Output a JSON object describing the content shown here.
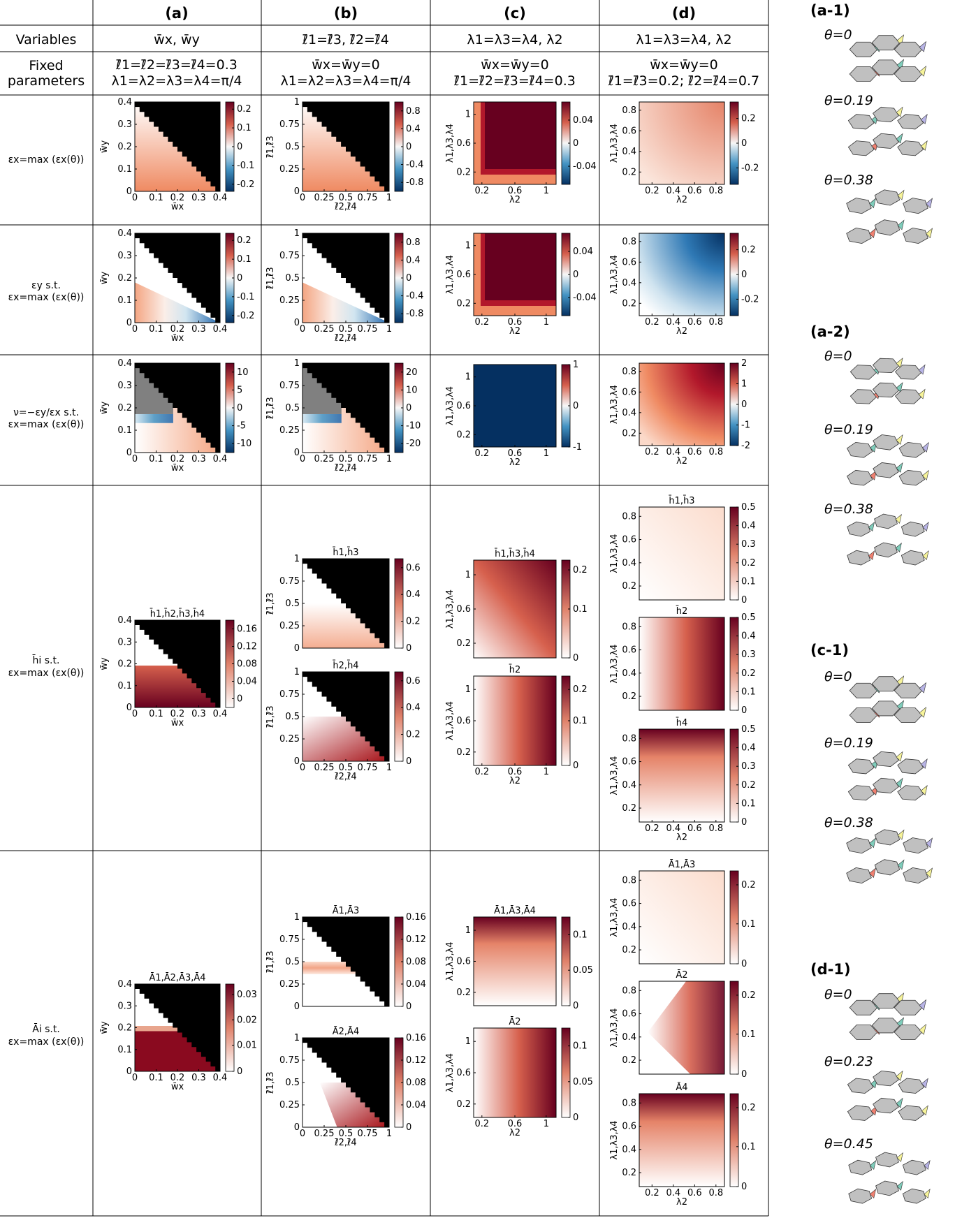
{
  "columns": {
    "a": "(a)",
    "b": "(b)",
    "c": "(c)",
    "d": "(d)"
  },
  "row_labels": {
    "variables": "Variables",
    "fixed_1": "Fixed",
    "fixed_2": "parameters",
    "r1": "εx=max (εx(θ))",
    "r2a": "εy s.t.",
    "r2b": "εx=max (εx(θ))",
    "r3a": "ν=−εy/εx s.t.",
    "r3b": "εx=max (εx(θ))",
    "r4a": "h̄i s.t.",
    "r4b": "εx=max (εx(θ))",
    "r5a": "Āi s.t.",
    "r5b": "εx=max (εx(θ))"
  },
  "variables": {
    "a": "w̄x,  w̄y",
    "b": "ℓ̄1=ℓ̄3,  ℓ̄2=ℓ̄4",
    "c": "λ1=λ3=λ4,  λ2",
    "d": "λ1=λ3=λ4,  λ2"
  },
  "fixed": {
    "a1": "ℓ̄1=ℓ̄2=ℓ̄3=ℓ̄4=0.3",
    "a2": "λ1=λ2=λ3=λ4=π/4",
    "b1": "w̄x=w̄y=0",
    "b2": "λ1=λ2=λ3=λ4=π/4",
    "c1": "w̄x=w̄y=0",
    "c2": "ℓ̄1=ℓ̄2=ℓ̄3=ℓ̄4=0.3",
    "d1": "w̄x=w̄y=0",
    "d2": "ℓ̄1=ℓ̄3=0.2;  ℓ̄2=ℓ̄4=0.7"
  },
  "axes": {
    "wx": "w̄x",
    "wy": "w̄y",
    "l24": "ℓ̄2,ℓ̄4",
    "l13": "ℓ̄1,ℓ̄3",
    "lam2": "λ2",
    "lam134": "λ1,λ3,λ4"
  },
  "subtitles": {
    "h_all": "h̄1,h̄2,h̄3,h̄4",
    "h13": "h̄1,h̄3",
    "h24": "h̄2,h̄4",
    "h134": "h̄1,h̄3,h̄4",
    "h2": "h̄2",
    "h4": "h̄4",
    "A_all": "Ā1,Ā2,Ā3,Ā4",
    "A13": "Ā1,Ā3",
    "A24": "Ā2,Ā4",
    "A134": "Ā1,Ā3,Ā4",
    "A2": "Ā2",
    "A4": "Ā4"
  },
  "ticks": {
    "w": [
      "0",
      "0.1",
      "0.2",
      "0.3",
      "0.4"
    ],
    "l": [
      "0",
      "0.25",
      "0.5",
      "0.75",
      "1"
    ],
    "lam_c": [
      "0.2",
      "0.6",
      "1"
    ],
    "lam_d": [
      "0.2",
      "0.4",
      "0.6",
      "0.8"
    ]
  },
  "colorbars": {
    "a_r1": [
      "0.2",
      "0.1",
      "0",
      "-0.1",
      "-0.2"
    ],
    "b_r1": [
      "0.8",
      "0.4",
      "0",
      "-0.4",
      "-0.8"
    ],
    "c_r1": [
      "0.04",
      "0",
      "-0.04"
    ],
    "d_r1": [
      "0.2",
      "0",
      "-0.2"
    ],
    "a_r3": [
      "10",
      "5",
      "0",
      "-5",
      "-10"
    ],
    "b_r3": [
      "20",
      "10",
      "0",
      "-10",
      "-20"
    ],
    "c_r3": [
      "1",
      "0",
      "-1"
    ],
    "d_r3": [
      "2",
      "1",
      "0",
      "-1",
      "-2"
    ],
    "a_h": [
      "0.16",
      "0.12",
      "0.08",
      "0.04",
      "0"
    ],
    "b_h": [
      "0.6",
      "0.4",
      "0.2",
      "0"
    ],
    "c_h": [
      "0.2",
      "0.1",
      "0"
    ],
    "d_h": [
      "0.5",
      "0.4",
      "0.3",
      "0.2",
      "0.1",
      "0"
    ],
    "a_A": [
      "0.03",
      "0.02",
      "0.01",
      "0"
    ],
    "b_A": [
      "0.16",
      "0.12",
      "0.08",
      "0.04",
      "0"
    ],
    "c_A": [
      "0.1",
      "0.05",
      "0"
    ],
    "d_A": [
      "0.2",
      "0.1",
      "0"
    ]
  },
  "side": {
    "a1": "(a-1)",
    "a2": "(a-2)",
    "c1": "(c-1)",
    "d1": "(d-1)",
    "t0": "θ=0",
    "t19": "θ=0.19",
    "t38": "θ=0.38",
    "t23": "θ=0.23",
    "t45": "θ=0.45"
  },
  "colors": {
    "red": "#67001f",
    "blue": "#053061",
    "black": "#000000",
    "gray": "#808080",
    "panel_gray": "#c0c0c0",
    "teal": "#7fcdbb",
    "yellow": "#f7f49a",
    "purple": "#b8b4e6",
    "salmon": "#f08070"
  }
}
